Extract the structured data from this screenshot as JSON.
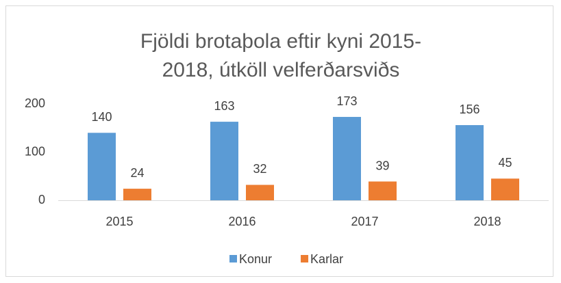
{
  "chart_data": {
    "type": "bar",
    "title": "Fjöldi brotaþola eftir kyni 2015-2018, útköll velferðarsviðs",
    "categories": [
      "2015",
      "2016",
      "2017",
      "2018"
    ],
    "series": [
      {
        "name": "Konur",
        "color": "#5b9bd5",
        "values": [
          140,
          163,
          173,
          156
        ]
      },
      {
        "name": "Karlar",
        "color": "#ed7d31",
        "values": [
          24,
          32,
          39,
          45
        ]
      }
    ],
    "ylim": [
      0,
      200
    ],
    "yticks": [
      0,
      100,
      200
    ],
    "grid": false,
    "legend": "bottom",
    "data_labels": true
  }
}
